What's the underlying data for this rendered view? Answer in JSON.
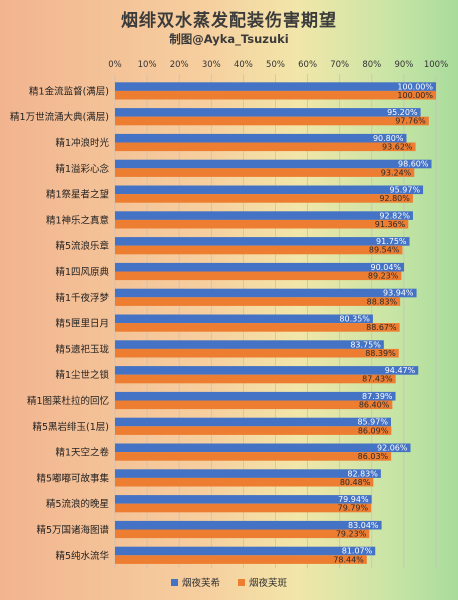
{
  "header": {
    "title": "烟绯双水蒸发配装伤害期望",
    "subtitle": "制图@Ayka_Tsuzuki"
  },
  "colors": {
    "series_a": "#4472c4",
    "series_b": "#ed7d31"
  },
  "chart_data": {
    "type": "bar",
    "orientation": "horizontal",
    "title": "烟绯双水蒸发配装伤害期望",
    "subtitle": "制图@Ayka_Tsuzuki",
    "xlim": [
      0,
      100
    ],
    "x_ticks": [
      "0%",
      "10%",
      "20%",
      "30%",
      "40%",
      "50%",
      "60%",
      "70%",
      "80%",
      "90%",
      "100%"
    ],
    "grid": true,
    "legend_position": "bottom",
    "categories": [
      "精1金流监督(满层)",
      "精1万世流涌大典(满层)",
      "精1冲浪时光",
      "精1溢彩心念",
      "精1祭星者之望",
      "精1神乐之真意",
      "精5流浪乐章",
      "精1四风原典",
      "精1千夜浮梦",
      "精5匣里日月",
      "精5遗祀玉珑",
      "精1尘世之锁",
      "精1图莱杜拉的回忆",
      "精5黑岩绯玉(1层)",
      "精1天空之卷",
      "精5嘟嘟可故事集",
      "精5流浪的晚星",
      "精5万国诸海图谱",
      "精5纯水流华"
    ],
    "series": [
      {
        "name": "烟夜芙希",
        "values": [
          100.0,
          95.2,
          90.8,
          98.6,
          95.97,
          92.82,
          91.75,
          90.04,
          93.94,
          80.35,
          83.75,
          94.47,
          87.39,
          85.97,
          92.06,
          82.83,
          79.94,
          83.04,
          81.07
        ],
        "labels": [
          "100.00%",
          "95.20%",
          "90.80%",
          "98.60%",
          "95.97%",
          "92.82%",
          "91.75%",
          "90.04%",
          "93.94%",
          "80.35%",
          "83.75%",
          "94.47%",
          "87.39%",
          "85.97%",
          "92.06%",
          "82.83%",
          "79.94%",
          "83.04%",
          "81.07%"
        ]
      },
      {
        "name": "烟夜芙斑",
        "values": [
          100.0,
          97.76,
          93.62,
          93.24,
          92.8,
          91.36,
          89.54,
          89.23,
          88.83,
          88.67,
          88.39,
          87.43,
          86.4,
          86.09,
          86.03,
          80.48,
          79.79,
          79.23,
          78.44
        ],
        "labels": [
          "100.00%",
          "97.76%",
          "93.62%",
          "93.24%",
          "92.80%",
          "91.36%",
          "89.54%",
          "89.23%",
          "88.83%",
          "88.67%",
          "88.39%",
          "87.43%",
          "86.40%",
          "86.09%",
          "86.03%",
          "80.48%",
          "79.79%",
          "79.23%",
          "78.44%"
        ]
      }
    ]
  }
}
